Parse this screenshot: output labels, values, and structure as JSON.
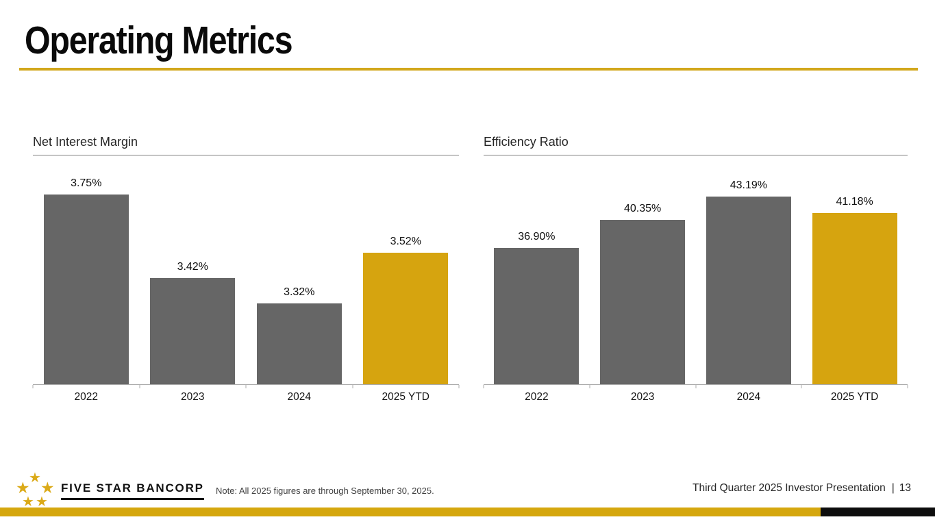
{
  "header": {
    "title": "Operating Metrics"
  },
  "chart_data": [
    {
      "type": "bar",
      "title": "Net Interest Margin",
      "categories": [
        "2022",
        "2023",
        "2024",
        "2025 YTD"
      ],
      "values": [
        3.75,
        3.42,
        3.32,
        3.52
      ],
      "labels": [
        "3.75%",
        "3.42%",
        "3.32%",
        "3.52%"
      ],
      "ylim": [
        3.0,
        3.8
      ],
      "xlabel": "",
      "ylabel": "",
      "grid": false,
      "legend": false,
      "bar_colors": [
        "#666666",
        "#666666",
        "#666666",
        "#d6a40f"
      ]
    },
    {
      "type": "bar",
      "title": "Efficiency Ratio",
      "categories": [
        "2022",
        "2023",
        "2024",
        "2025 YTD"
      ],
      "values": [
        36.9,
        40.35,
        43.19,
        41.18
      ],
      "labels": [
        "36.90%",
        "40.35%",
        "43.19%",
        "41.18%"
      ],
      "ylim": [
        20,
        45
      ],
      "xlabel": "",
      "ylabel": "",
      "grid": false,
      "legend": false,
      "bar_colors": [
        "#666666",
        "#666666",
        "#666666",
        "#d6a40f"
      ]
    }
  ],
  "footer": {
    "logo_icon": "five-stars-icon",
    "logo_text": "FIVE STAR BANCORP",
    "note": "Note: All 2025 figures are through September 30, 2025.",
    "presentation_title": "Third Quarter 2025 Investor Presentation",
    "separator": "|",
    "page_number": "13"
  },
  "colors": {
    "bar_gray": "#666666",
    "bar_gold": "#d6a40f",
    "title_rule_gold": "#d2a71c",
    "bottom_bar_gold": "#d5a70e",
    "bottom_bar_black": "#0d0d0d",
    "star_gold": "#dbaa18",
    "axis_gray": "#ababab"
  },
  "star_glyph": "★"
}
